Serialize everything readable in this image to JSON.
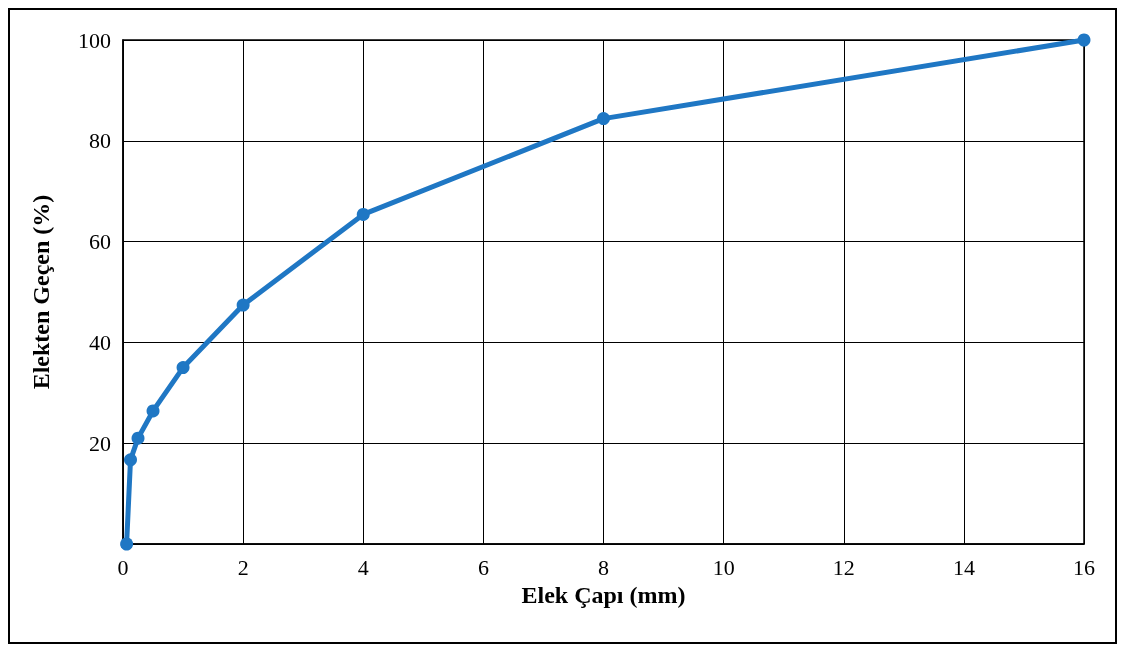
{
  "chart_data": {
    "type": "line",
    "xlabel": "Elek Çapı (mm)",
    "ylabel": "Elekten Geçen (%)",
    "x": [
      0.06,
      0.125,
      0.25,
      0.5,
      1,
      2,
      4,
      8,
      16
    ],
    "series": [
      {
        "color": "#1f77c4",
        "values": [
          0,
          16.7,
          21,
          26.4,
          35,
          47.4,
          65.4,
          84.4,
          100
        ]
      }
    ],
    "xlim": [
      0,
      16
    ],
    "xticks": [
      0,
      2,
      4,
      6,
      8,
      10,
      12,
      14,
      16
    ],
    "ylim": [
      0,
      100
    ],
    "yticks": [
      {
        "value": 0,
        "label": null
      },
      20,
      40,
      60,
      80,
      100
    ],
    "grid": true,
    "marker": "circle",
    "line_style": "solid"
  }
}
